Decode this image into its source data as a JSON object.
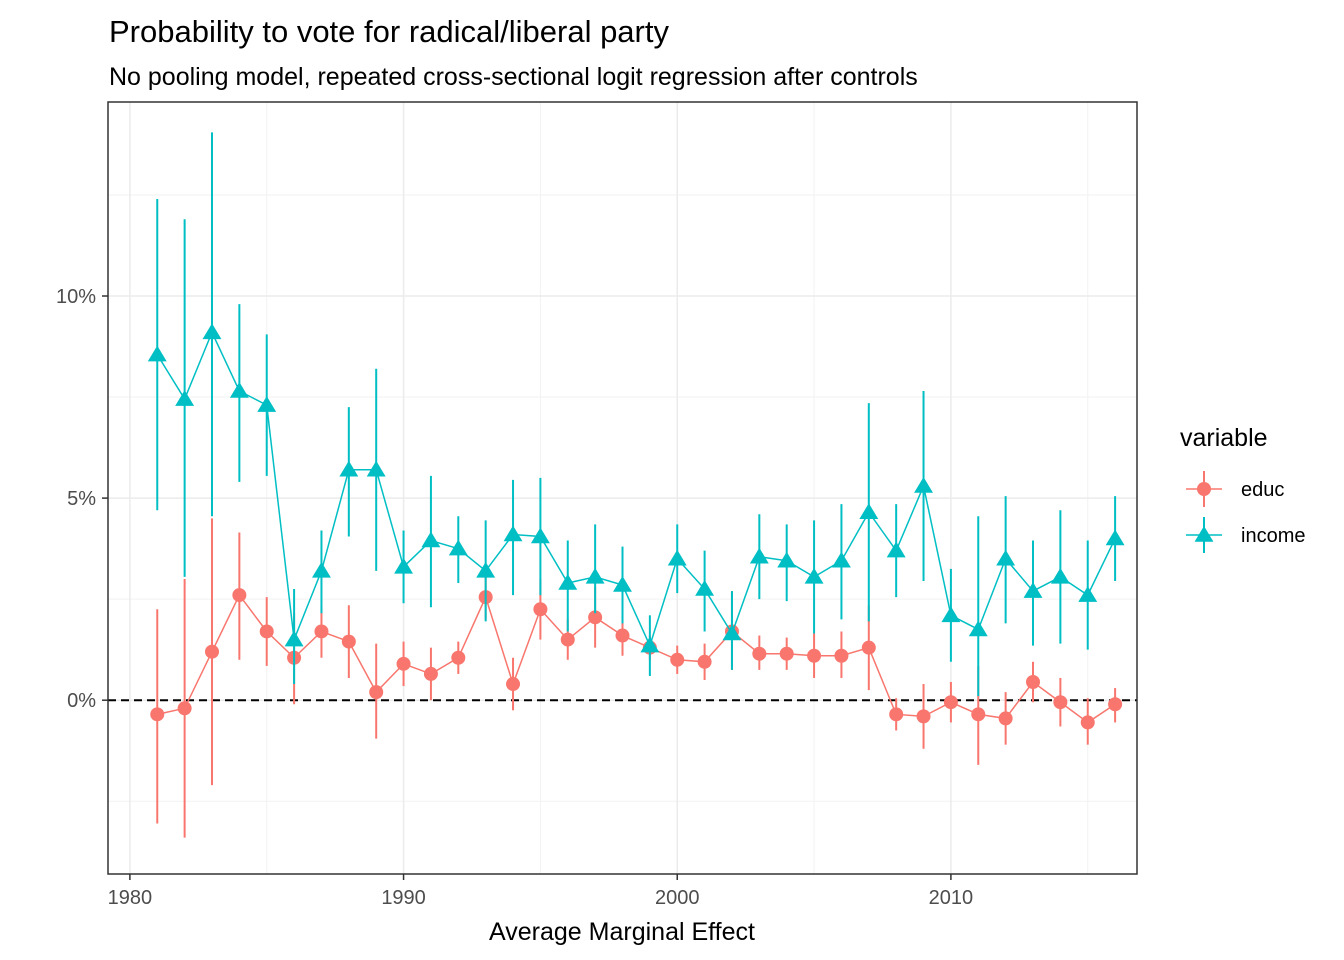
{
  "chart_data": {
    "type": "line",
    "title": "Probability to vote for radical/liberal party",
    "subtitle": "No pooling model, repeated cross-sectional logit regression after controls",
    "xlabel": "Average Marginal Effect",
    "ylabel": "",
    "xlim": [
      1979.2,
      2016.8
    ],
    "ylim": [
      -4.3,
      14.8
    ],
    "x_ticks": [
      1980,
      1990,
      2000,
      2010
    ],
    "x_tick_labels": [
      "1980",
      "1990",
      "2000",
      "2010"
    ],
    "y_ticks": [
      0,
      5,
      10
    ],
    "y_tick_labels": [
      "0%",
      "5%",
      "10%"
    ],
    "y_minor_ticks": [
      -2.5,
      2.5,
      7.5,
      12.5
    ],
    "x_minor_ticks": [
      1985,
      1995,
      2005,
      2015
    ],
    "reference_line": {
      "y": 0,
      "style": "dashed"
    },
    "grid": true,
    "legend": {
      "title": "variable",
      "position": "right"
    },
    "x": [
      1981,
      1982,
      1983,
      1984,
      1985,
      1986,
      1987,
      1988,
      1989,
      1990,
      1991,
      1992,
      1993,
      1994,
      1995,
      1996,
      1997,
      1998,
      1999,
      2000,
      2001,
      2002,
      2003,
      2004,
      2005,
      2006,
      2007,
      2008,
      2009,
      2010,
      2011,
      2012,
      2013,
      2014,
      2015,
      2016
    ],
    "series": [
      {
        "name": "educ",
        "color": "#F8766D",
        "marker": "circle",
        "values": [
          -0.35,
          -0.2,
          1.2,
          2.6,
          1.7,
          1.05,
          1.7,
          1.45,
          0.2,
          0.9,
          0.65,
          1.05,
          2.55,
          0.4,
          2.25,
          1.5,
          2.05,
          1.6,
          1.3,
          1.0,
          0.95,
          1.7,
          1.15,
          1.15,
          1.1,
          1.1,
          1.3,
          -0.35,
          -0.4,
          -0.05,
          -0.35,
          -0.45,
          0.45,
          -0.05,
          -0.55,
          -0.1
        ],
        "lower": [
          -3.05,
          -3.4,
          -2.1,
          1.0,
          0.85,
          -0.1,
          1.05,
          0.55,
          -0.95,
          0.35,
          0.0,
          0.65,
          2.0,
          -0.25,
          1.5,
          1.0,
          1.3,
          1.1,
          1.0,
          0.65,
          0.5,
          0.75,
          0.75,
          0.75,
          0.55,
          0.55,
          0.25,
          -0.75,
          -1.2,
          -0.55,
          -1.6,
          -1.1,
          -0.05,
          -0.65,
          -1.1,
          -0.55
        ],
        "upper": [
          2.25,
          3.0,
          4.5,
          4.15,
          2.55,
          2.15,
          2.35,
          2.35,
          1.4,
          1.45,
          1.3,
          1.45,
          3.15,
          1.05,
          3.0,
          2.0,
          2.8,
          2.1,
          1.6,
          1.35,
          1.4,
          2.7,
          1.6,
          1.55,
          1.65,
          1.7,
          2.35,
          0.05,
          0.4,
          0.45,
          0.85,
          0.2,
          0.95,
          0.55,
          0.05,
          0.3
        ]
      },
      {
        "name": "income",
        "color": "#00BFC4",
        "marker": "triangle",
        "values": [
          8.55,
          7.45,
          9.1,
          7.65,
          7.3,
          1.5,
          3.2,
          5.7,
          5.7,
          3.3,
          3.95,
          3.75,
          3.2,
          4.1,
          4.05,
          2.9,
          3.05,
          2.85,
          1.35,
          3.5,
          2.75,
          1.65,
          3.55,
          3.45,
          3.05,
          3.45,
          4.65,
          3.7,
          5.3,
          2.1,
          1.75,
          3.5,
          2.7,
          3.05,
          2.6,
          4.0
        ],
        "lower": [
          4.7,
          3.05,
          4.55,
          5.4,
          5.55,
          0.4,
          2.15,
          4.05,
          3.2,
          2.4,
          2.3,
          2.9,
          1.95,
          2.6,
          2.6,
          1.7,
          2.15,
          1.9,
          0.6,
          2.65,
          1.7,
          0.75,
          2.5,
          2.45,
          1.65,
          2.0,
          1.95,
          2.55,
          2.95,
          0.95,
          0.1,
          1.9,
          1.35,
          1.4,
          1.25,
          2.95
        ],
        "upper": [
          12.4,
          11.9,
          14.05,
          9.8,
          9.05,
          2.75,
          4.2,
          7.25,
          8.2,
          4.2,
          5.55,
          4.55,
          4.45,
          5.45,
          5.5,
          3.95,
          4.35,
          3.8,
          2.1,
          4.35,
          3.7,
          2.7,
          4.6,
          4.35,
          4.45,
          4.85,
          7.35,
          4.85,
          7.65,
          3.25,
          4.55,
          5.05,
          3.95,
          4.7,
          3.95,
          5.05
        ]
      }
    ]
  }
}
